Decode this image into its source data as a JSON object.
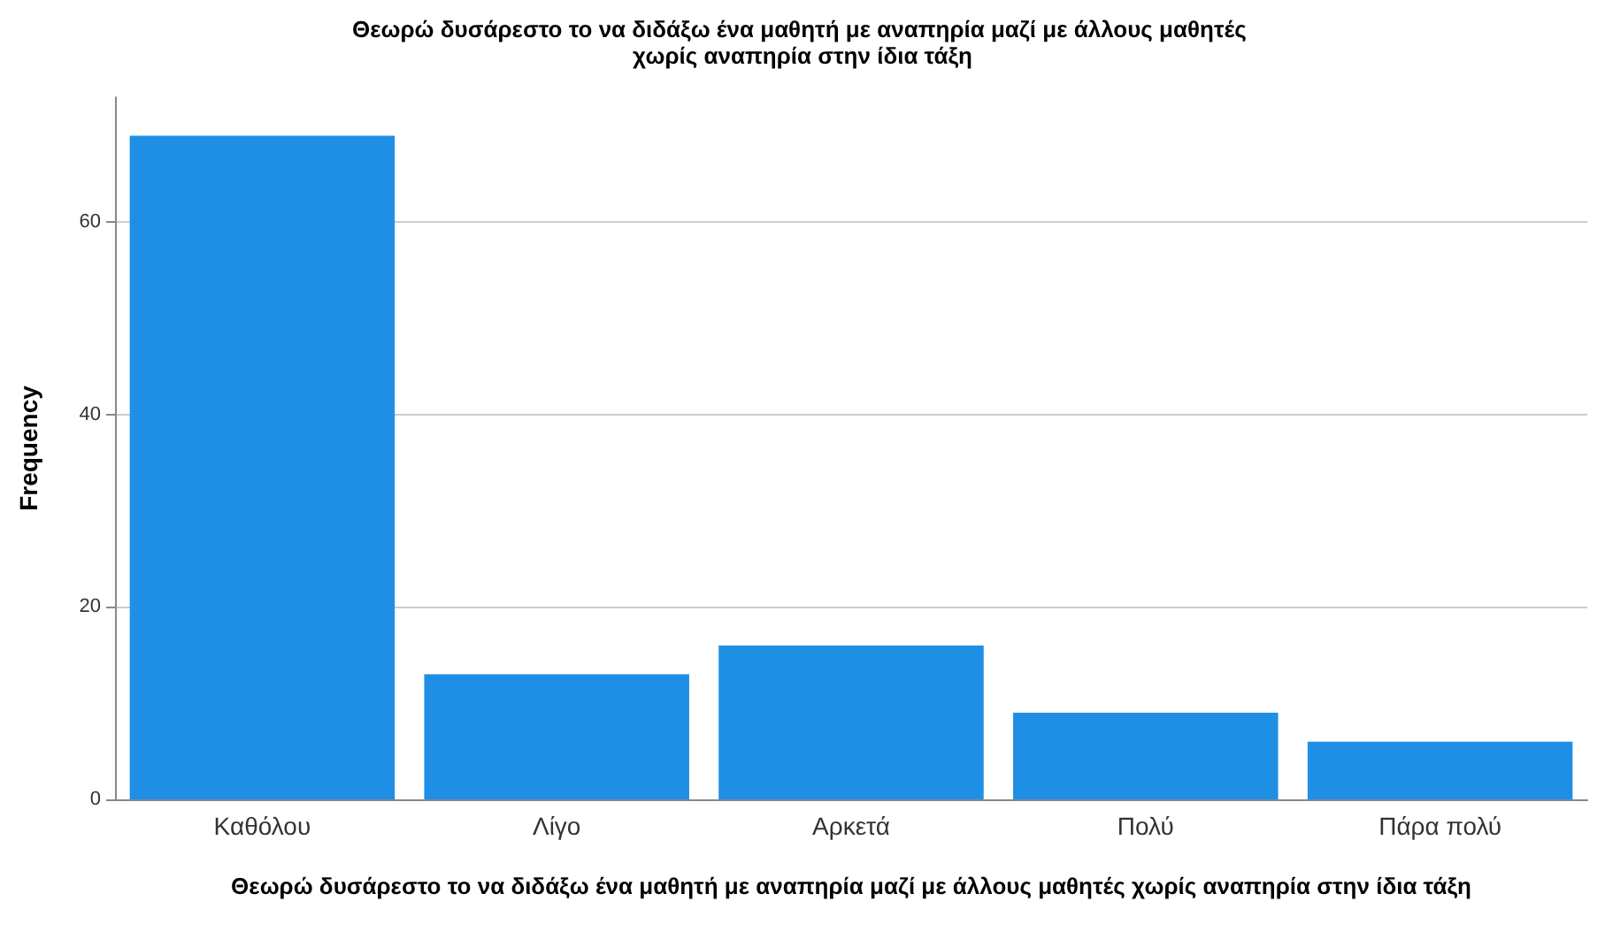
{
  "chart_data": {
    "type": "bar",
    "title": "Θεωρώ δυσάρεστο το να διδάξω ένα μαθητή με αναπηρία μαζί με άλλους μαθητές χωρίς αναπηρία στην ίδια τάξη",
    "xlabel": "Θεωρώ δυσάρεστο το να διδάξω ένα μαθητή με αναπηρία μαζί με άλλους μαθητές χωρίς αναπηρία στην ίδια τάξη",
    "ylabel": "Frequency",
    "categories": [
      "Καθόλου",
      "Λίγο",
      "Αρκετά",
      "Πολύ",
      "Πάρα πολύ"
    ],
    "values": [
      69,
      13,
      16,
      9,
      6
    ],
    "color": "#1f8fe6",
    "ylim": [
      0,
      73
    ],
    "yticks": [
      0,
      20,
      40,
      60
    ],
    "grid": "y"
  }
}
